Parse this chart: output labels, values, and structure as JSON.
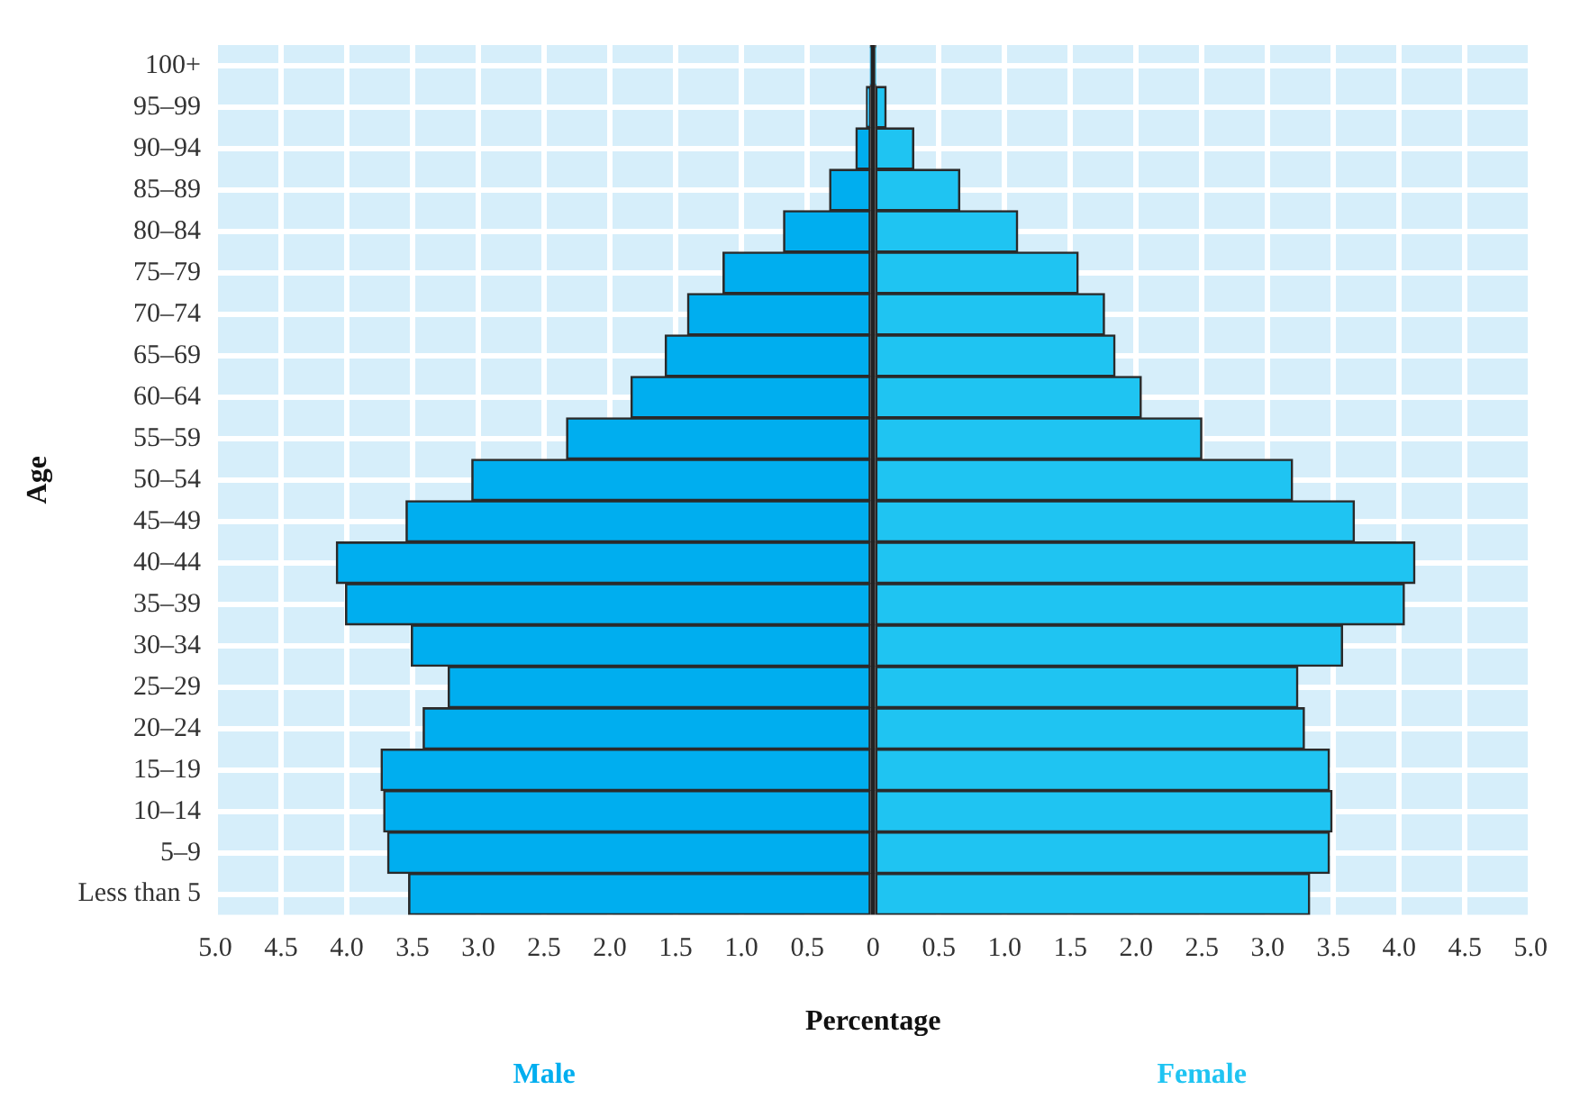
{
  "chart_data": {
    "type": "bar",
    "orientation": "horizontal",
    "xlabel": "Percentage",
    "ylabel": "Age",
    "categories": [
      "100+",
      "95–99",
      "90–94",
      "85–89",
      "80–84",
      "75–79",
      "70–74",
      "65–69",
      "60–64",
      "55–59",
      "50–54",
      "45–49",
      "40–44",
      "35–39",
      "30–34",
      "25–29",
      "20–24",
      "15–19",
      "10–14",
      "5–9",
      "Less than 5"
    ],
    "series": [
      {
        "name": "Male",
        "color": "#00aeef",
        "values": [
          -0.02,
          -0.05,
          -0.13,
          -0.33,
          -0.68,
          -1.14,
          -1.41,
          -1.58,
          -1.84,
          -2.33,
          -3.05,
          -3.55,
          -4.08,
          -4.01,
          -3.51,
          -3.23,
          -3.42,
          -3.74,
          -3.72,
          -3.69,
          -3.53
        ]
      },
      {
        "name": "Female",
        "color": "#1fc4f2",
        "values": [
          0.02,
          0.1,
          0.31,
          0.66,
          1.1,
          1.56,
          1.76,
          1.84,
          2.04,
          2.5,
          3.19,
          3.66,
          4.12,
          4.04,
          3.57,
          3.23,
          3.28,
          3.47,
          3.49,
          3.47,
          3.32
        ]
      }
    ],
    "xlim": [
      -5,
      5
    ],
    "xticks": [
      {
        "value": -5,
        "label": "5.0"
      },
      {
        "value": -4.5,
        "label": "4.5"
      },
      {
        "value": -4,
        "label": "4.0"
      },
      {
        "value": -3.5,
        "label": "3.5"
      },
      {
        "value": -3,
        "label": "3.0"
      },
      {
        "value": -2.5,
        "label": "2.5"
      },
      {
        "value": -2,
        "label": "2.0"
      },
      {
        "value": -1.5,
        "label": "1.5"
      },
      {
        "value": -1,
        "label": "1.0"
      },
      {
        "value": -0.5,
        "label": "0.5"
      },
      0,
      0.5,
      {
        "value": 1,
        "label": "1.0"
      },
      1.5,
      {
        "value": 2,
        "label": "2.0"
      },
      2.5,
      {
        "value": 3,
        "label": "3.0"
      },
      3.5,
      {
        "value": 4,
        "label": "4.0"
      },
      4.5,
      {
        "value": 5,
        "label": "5.0"
      }
    ],
    "ref_lines": [
      {
        "axis": "x",
        "value": 0,
        "color": "#222222"
      }
    ],
    "stacked": true,
    "grid": true,
    "legend": false
  }
}
